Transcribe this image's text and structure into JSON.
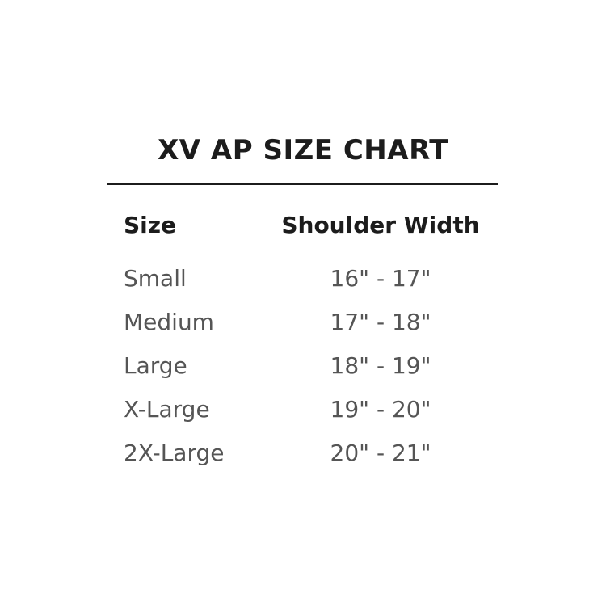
{
  "title": "XV AP SIZE CHART",
  "table": {
    "headers": [
      "Size",
      "Shoulder Width"
    ],
    "rows": [
      {
        "size": "Small",
        "width": "16\" - 17\""
      },
      {
        "size": "Medium",
        "width": "17\" - 18\""
      },
      {
        "size": "Large",
        "width": "18\" - 19\""
      },
      {
        "size": "X-Large",
        "width": "19\" - 20\""
      },
      {
        "size": "2X-Large",
        "width": "20\" - 21\""
      }
    ]
  },
  "colors": {
    "heading": "#1c1c1c",
    "body_text": "#555555"
  }
}
